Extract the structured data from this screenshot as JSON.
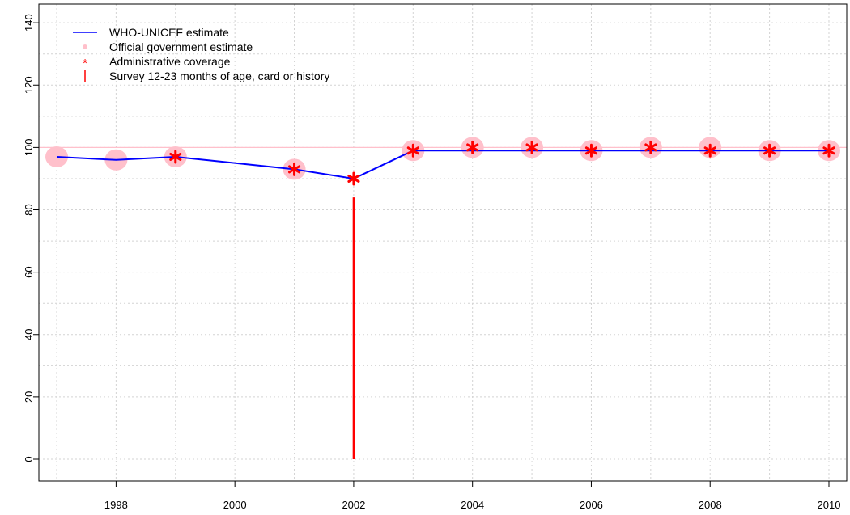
{
  "chart_data": {
    "type": "line",
    "title": "",
    "xlabel": "",
    "ylabel": "",
    "xlim": [
      1996.7,
      2010.3
    ],
    "ylim": [
      -7,
      146
    ],
    "x_ticks": [
      1998,
      2000,
      2002,
      2004,
      2006,
      2008,
      2010
    ],
    "x_tick_labels": [
      "1998",
      "2000",
      "2002",
      "2004",
      "2006",
      "2008",
      "2010"
    ],
    "x_grid": [
      1997,
      1998,
      1999,
      2000,
      2001,
      2002,
      2003,
      2004,
      2005,
      2006,
      2007,
      2008,
      2009,
      2010
    ],
    "y_ticks": [
      0,
      20,
      40,
      60,
      80,
      100,
      120,
      140
    ],
    "y_tick_labels": [
      "0",
      "20",
      "40",
      "60",
      "80",
      "100",
      "120",
      "140"
    ],
    "y_grid": [
      0,
      10,
      20,
      30,
      40,
      50,
      60,
      70,
      80,
      90,
      100,
      110,
      120,
      130,
      140
    ],
    "grid": true,
    "reference_line": {
      "y": 100,
      "color": "#ffc0cb"
    },
    "legend_position": "top-left",
    "legend": [
      {
        "label": "WHO-UNICEF estimate",
        "symbol": "line",
        "color": "#0000ff"
      },
      {
        "label": "Official government estimate",
        "symbol": "dot",
        "color": "#ffc0cb"
      },
      {
        "label": "Administrative coverage",
        "symbol": "asterisk",
        "color": "#ff0000"
      },
      {
        "label": "Survey 12-23 months of age, card or history",
        "symbol": "bar",
        "color": "#ff0000"
      }
    ],
    "series": [
      {
        "name": "WHO-UNICEF estimate",
        "kind": "line",
        "color": "#0000ff",
        "x": [
          1997,
          1998,
          1999,
          2001,
          2002,
          2003,
          2004,
          2005,
          2006,
          2007,
          2008,
          2009,
          2010
        ],
        "y": [
          97,
          96,
          97,
          93,
          90,
          99,
          99,
          99,
          99,
          99,
          99,
          99,
          99
        ]
      },
      {
        "name": "Official government estimate",
        "kind": "dot",
        "color": "#ffc0cb",
        "x": [
          1997,
          1998,
          1999,
          2001,
          2003,
          2004,
          2005,
          2006,
          2007,
          2008,
          2009,
          2010
        ],
        "y": [
          97,
          96,
          97,
          93,
          99,
          100,
          100,
          99,
          100,
          100,
          99,
          99
        ]
      },
      {
        "name": "Administrative coverage",
        "kind": "asterisk",
        "color": "#ff0000",
        "x": [
          1999,
          2001,
          2002,
          2003,
          2004,
          2005,
          2006,
          2007,
          2008,
          2009,
          2010
        ],
        "y": [
          97,
          93,
          90,
          99,
          100,
          100,
          99,
          100,
          99,
          99,
          99
        ]
      },
      {
        "name": "Survey 12-23 months of age, card or history",
        "kind": "bar",
        "color": "#ff0000",
        "x": [
          2002
        ],
        "y": [
          0
        ],
        "y_high": [
          84
        ]
      }
    ]
  }
}
